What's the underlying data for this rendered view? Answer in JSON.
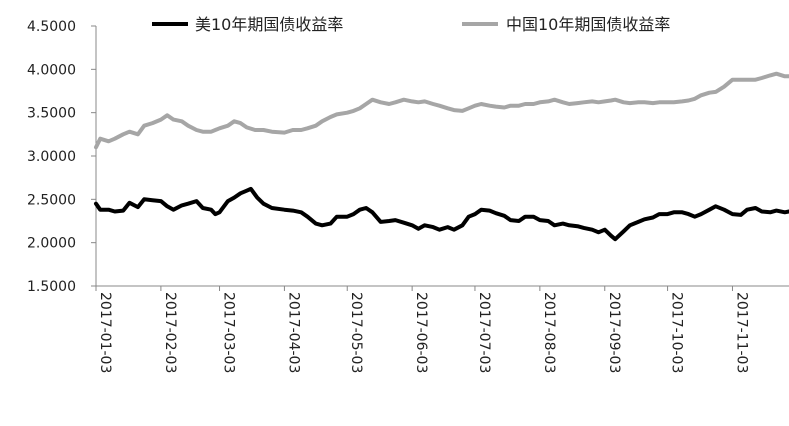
{
  "chart_data": {
    "type": "line",
    "title": "",
    "xlabel": "",
    "ylabel": "",
    "ylim": [
      1.5,
      4.5
    ],
    "yticks": [
      "1.5000",
      "2.0000",
      "2.5000",
      "3.0000",
      "3.5000",
      "4.0000",
      "4.5000"
    ],
    "x_range": [
      "2017-01-03",
      "2017-11-30"
    ],
    "xticks": [
      "2017-01-03",
      "2017-02-03",
      "2017-03-03",
      "2017-04-03",
      "2017-05-03",
      "2017-06-03",
      "2017-07-03",
      "2017-08-03",
      "2017-09-03",
      "2017-10-03",
      "2017-11-03"
    ],
    "grid": false,
    "legend": "top",
    "series": [
      {
        "name": "美10年期国债收益率",
        "color": "#000000",
        "points": [
          [
            "2017-01-03",
            2.45
          ],
          [
            "2017-01-05",
            2.38
          ],
          [
            "2017-01-09",
            2.38
          ],
          [
            "2017-01-12",
            2.36
          ],
          [
            "2017-01-16",
            2.37
          ],
          [
            "2017-01-19",
            2.46
          ],
          [
            "2017-01-23",
            2.41
          ],
          [
            "2017-01-26",
            2.5
          ],
          [
            "2017-01-30",
            2.49
          ],
          [
            "2017-02-03",
            2.48
          ],
          [
            "2017-02-06",
            2.42
          ],
          [
            "2017-02-09",
            2.38
          ],
          [
            "2017-02-13",
            2.43
          ],
          [
            "2017-02-16",
            2.45
          ],
          [
            "2017-02-20",
            2.48
          ],
          [
            "2017-02-23",
            2.4
          ],
          [
            "2017-02-27",
            2.38
          ],
          [
            "2017-03-01",
            2.33
          ],
          [
            "2017-03-03",
            2.35
          ],
          [
            "2017-03-07",
            2.48
          ],
          [
            "2017-03-10",
            2.52
          ],
          [
            "2017-03-13",
            2.57
          ],
          [
            "2017-03-16",
            2.6
          ],
          [
            "2017-03-18",
            2.62
          ],
          [
            "2017-03-21",
            2.52
          ],
          [
            "2017-03-24",
            2.45
          ],
          [
            "2017-03-28",
            2.4
          ],
          [
            "2017-04-03",
            2.38
          ],
          [
            "2017-04-07",
            2.37
          ],
          [
            "2017-04-11",
            2.35
          ],
          [
            "2017-04-14",
            2.3
          ],
          [
            "2017-04-18",
            2.22
          ],
          [
            "2017-04-21",
            2.2
          ],
          [
            "2017-04-25",
            2.22
          ],
          [
            "2017-04-28",
            2.3
          ],
          [
            "2017-05-03",
            2.3
          ],
          [
            "2017-05-06",
            2.33
          ],
          [
            "2017-05-09",
            2.38
          ],
          [
            "2017-05-12",
            2.4
          ],
          [
            "2017-05-15",
            2.35
          ],
          [
            "2017-05-19",
            2.24
          ],
          [
            "2017-05-23",
            2.25
          ],
          [
            "2017-05-26",
            2.26
          ],
          [
            "2017-05-30",
            2.23
          ],
          [
            "2017-06-03",
            2.2
          ],
          [
            "2017-06-06",
            2.16
          ],
          [
            "2017-06-09",
            2.2
          ],
          [
            "2017-06-13",
            2.18
          ],
          [
            "2017-06-16",
            2.15
          ],
          [
            "2017-06-20",
            2.18
          ],
          [
            "2017-06-23",
            2.15
          ],
          [
            "2017-06-27",
            2.2
          ],
          [
            "2017-06-30",
            2.3
          ],
          [
            "2017-07-03",
            2.33
          ],
          [
            "2017-07-06",
            2.38
          ],
          [
            "2017-07-10",
            2.37
          ],
          [
            "2017-07-13",
            2.34
          ],
          [
            "2017-07-17",
            2.31
          ],
          [
            "2017-07-20",
            2.26
          ],
          [
            "2017-07-24",
            2.25
          ],
          [
            "2017-07-27",
            2.3
          ],
          [
            "2017-07-31",
            2.3
          ],
          [
            "2017-08-03",
            2.26
          ],
          [
            "2017-08-07",
            2.25
          ],
          [
            "2017-08-10",
            2.2
          ],
          [
            "2017-08-14",
            2.22
          ],
          [
            "2017-08-17",
            2.2
          ],
          [
            "2017-08-21",
            2.19
          ],
          [
            "2017-08-24",
            2.17
          ],
          [
            "2017-08-28",
            2.15
          ],
          [
            "2017-08-31",
            2.12
          ],
          [
            "2017-09-03",
            2.15
          ],
          [
            "2017-09-06",
            2.08
          ],
          [
            "2017-09-08",
            2.04
          ],
          [
            "2017-09-12",
            2.13
          ],
          [
            "2017-09-15",
            2.2
          ],
          [
            "2017-09-19",
            2.24
          ],
          [
            "2017-09-22",
            2.27
          ],
          [
            "2017-09-26",
            2.29
          ],
          [
            "2017-09-29",
            2.33
          ],
          [
            "2017-10-03",
            2.33
          ],
          [
            "2017-10-06",
            2.35
          ],
          [
            "2017-10-10",
            2.35
          ],
          [
            "2017-10-13",
            2.33
          ],
          [
            "2017-10-16",
            2.3
          ],
          [
            "2017-10-19",
            2.33
          ],
          [
            "2017-10-23",
            2.38
          ],
          [
            "2017-10-26",
            2.42
          ],
          [
            "2017-10-30",
            2.38
          ],
          [
            "2017-11-03",
            2.33
          ],
          [
            "2017-11-07",
            2.32
          ],
          [
            "2017-11-10",
            2.38
          ],
          [
            "2017-11-14",
            2.4
          ],
          [
            "2017-11-17",
            2.36
          ],
          [
            "2017-11-21",
            2.35
          ],
          [
            "2017-11-24",
            2.37
          ],
          [
            "2017-11-28",
            2.35
          ],
          [
            "2017-11-30",
            2.36
          ]
        ]
      },
      {
        "name": "中国10年期国债收益率",
        "color": "#a6a6a6",
        "points": [
          [
            "2017-01-03",
            3.1
          ],
          [
            "2017-01-05",
            3.2
          ],
          [
            "2017-01-09",
            3.17
          ],
          [
            "2017-01-12",
            3.2
          ],
          [
            "2017-01-16",
            3.25
          ],
          [
            "2017-01-19",
            3.28
          ],
          [
            "2017-01-23",
            3.25
          ],
          [
            "2017-01-26",
            3.35
          ],
          [
            "2017-01-30",
            3.38
          ],
          [
            "2017-02-03",
            3.42
          ],
          [
            "2017-02-06",
            3.47
          ],
          [
            "2017-02-09",
            3.42
          ],
          [
            "2017-02-13",
            3.4
          ],
          [
            "2017-02-16",
            3.35
          ],
          [
            "2017-02-20",
            3.3
          ],
          [
            "2017-02-23",
            3.28
          ],
          [
            "2017-02-27",
            3.28
          ],
          [
            "2017-03-01",
            3.3
          ],
          [
            "2017-03-03",
            3.32
          ],
          [
            "2017-03-07",
            3.35
          ],
          [
            "2017-03-10",
            3.4
          ],
          [
            "2017-03-13",
            3.38
          ],
          [
            "2017-03-16",
            3.33
          ],
          [
            "2017-03-20",
            3.3
          ],
          [
            "2017-03-24",
            3.3
          ],
          [
            "2017-03-28",
            3.28
          ],
          [
            "2017-04-03",
            3.27
          ],
          [
            "2017-04-07",
            3.3
          ],
          [
            "2017-04-11",
            3.3
          ],
          [
            "2017-04-14",
            3.32
          ],
          [
            "2017-04-18",
            3.35
          ],
          [
            "2017-04-21",
            3.4
          ],
          [
            "2017-04-25",
            3.45
          ],
          [
            "2017-04-28",
            3.48
          ],
          [
            "2017-05-03",
            3.5
          ],
          [
            "2017-05-06",
            3.52
          ],
          [
            "2017-05-09",
            3.55
          ],
          [
            "2017-05-12",
            3.6
          ],
          [
            "2017-05-15",
            3.65
          ],
          [
            "2017-05-19",
            3.62
          ],
          [
            "2017-05-23",
            3.6
          ],
          [
            "2017-05-26",
            3.62
          ],
          [
            "2017-05-30",
            3.65
          ],
          [
            "2017-06-03",
            3.63
          ],
          [
            "2017-06-06",
            3.62
          ],
          [
            "2017-06-09",
            3.63
          ],
          [
            "2017-06-13",
            3.6
          ],
          [
            "2017-06-16",
            3.58
          ],
          [
            "2017-06-20",
            3.55
          ],
          [
            "2017-06-23",
            3.53
          ],
          [
            "2017-06-27",
            3.52
          ],
          [
            "2017-06-30",
            3.55
          ],
          [
            "2017-07-03",
            3.58
          ],
          [
            "2017-07-06",
            3.6
          ],
          [
            "2017-07-10",
            3.58
          ],
          [
            "2017-07-13",
            3.57
          ],
          [
            "2017-07-17",
            3.56
          ],
          [
            "2017-07-20",
            3.58
          ],
          [
            "2017-07-24",
            3.58
          ],
          [
            "2017-07-27",
            3.6
          ],
          [
            "2017-07-31",
            3.6
          ],
          [
            "2017-08-03",
            3.62
          ],
          [
            "2017-08-07",
            3.63
          ],
          [
            "2017-08-10",
            3.65
          ],
          [
            "2017-08-14",
            3.62
          ],
          [
            "2017-08-17",
            3.6
          ],
          [
            "2017-08-21",
            3.61
          ],
          [
            "2017-08-24",
            3.62
          ],
          [
            "2017-08-28",
            3.63
          ],
          [
            "2017-08-31",
            3.62
          ],
          [
            "2017-09-03",
            3.63
          ],
          [
            "2017-09-06",
            3.64
          ],
          [
            "2017-09-08",
            3.65
          ],
          [
            "2017-09-12",
            3.62
          ],
          [
            "2017-09-15",
            3.61
          ],
          [
            "2017-09-19",
            3.62
          ],
          [
            "2017-09-22",
            3.62
          ],
          [
            "2017-09-26",
            3.61
          ],
          [
            "2017-09-29",
            3.62
          ],
          [
            "2017-10-03",
            3.62
          ],
          [
            "2017-10-06",
            3.62
          ],
          [
            "2017-10-10",
            3.63
          ],
          [
            "2017-10-13",
            3.64
          ],
          [
            "2017-10-16",
            3.66
          ],
          [
            "2017-10-19",
            3.7
          ],
          [
            "2017-10-23",
            3.73
          ],
          [
            "2017-10-26",
            3.74
          ],
          [
            "2017-10-30",
            3.8
          ],
          [
            "2017-11-03",
            3.88
          ],
          [
            "2017-11-07",
            3.88
          ],
          [
            "2017-11-10",
            3.88
          ],
          [
            "2017-11-14",
            3.88
          ],
          [
            "2017-11-17",
            3.9
          ],
          [
            "2017-11-21",
            3.93
          ],
          [
            "2017-11-24",
            3.95
          ],
          [
            "2017-11-28",
            3.92
          ],
          [
            "2017-11-30",
            3.92
          ]
        ]
      }
    ]
  }
}
